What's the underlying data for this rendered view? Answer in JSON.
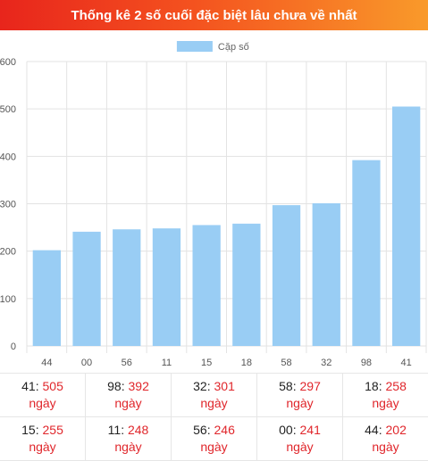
{
  "header": {
    "title": "Thống kê 2 số cuối đặc biệt lâu chưa về nhất"
  },
  "colors": {
    "bar": "#99cdf4",
    "accent": "#e0262b",
    "header_start": "#e8251c",
    "header_end": "#f99a2a"
  },
  "chart_data": {
    "type": "bar",
    "categories": [
      "44",
      "00",
      "56",
      "11",
      "15",
      "18",
      "58",
      "32",
      "98",
      "41"
    ],
    "series": [
      {
        "name": "Cặp số",
        "values": [
          202,
          241,
          246,
          248,
          255,
          258,
          297,
          301,
          392,
          505
        ]
      }
    ],
    "ylim": [
      0,
      600
    ],
    "y_ticks": [
      "0",
      "100",
      "200",
      "300",
      "400",
      "500",
      "600"
    ],
    "grid": true,
    "legend_position": "top-center"
  },
  "stats": {
    "rows": [
      [
        {
          "num": "41",
          "days": "505",
          "unit": "ngày"
        },
        {
          "num": "98",
          "days": "392",
          "unit": "ngày"
        },
        {
          "num": "32",
          "days": "301",
          "unit": "ngày"
        },
        {
          "num": "58",
          "days": "297",
          "unit": "ngày"
        },
        {
          "num": "18",
          "days": "258",
          "unit": "ngày"
        }
      ],
      [
        {
          "num": "15",
          "days": "255",
          "unit": "ngày"
        },
        {
          "num": "11",
          "days": "248",
          "unit": "ngày"
        },
        {
          "num": "56",
          "days": "246",
          "unit": "ngày"
        },
        {
          "num": "00",
          "days": "241",
          "unit": "ngày"
        },
        {
          "num": "44",
          "days": "202",
          "unit": "ngày"
        }
      ]
    ]
  }
}
